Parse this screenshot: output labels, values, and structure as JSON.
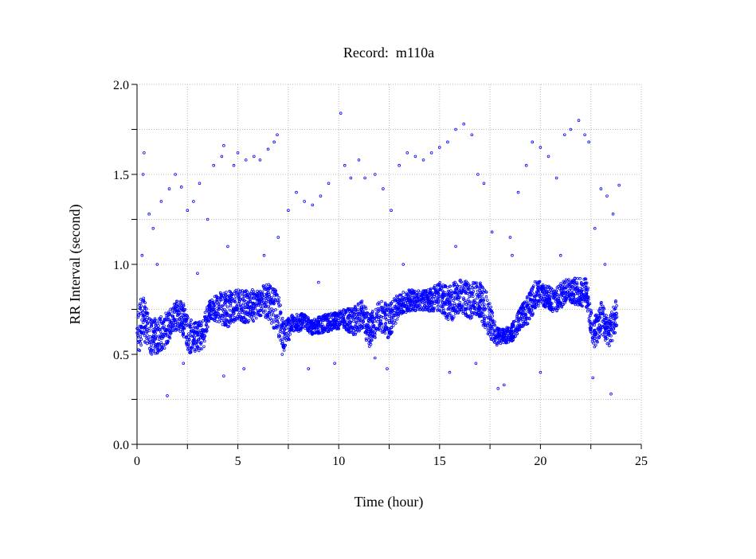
{
  "chart_data": {
    "type": "scatter",
    "title": "Record:  m110a",
    "xlabel": "Time (hour)",
    "ylabel": "RR Interval (second)",
    "xlim": [
      0,
      25
    ],
    "ylim": [
      0,
      2.0
    ],
    "xticks": [
      "0",
      "5",
      "10",
      "15",
      "20",
      "25"
    ],
    "xtick_values": [
      0,
      5,
      10,
      15,
      20,
      25
    ],
    "yticks": [
      "0.0",
      "0.5",
      "1.0",
      "1.5",
      "2.0"
    ],
    "ytick_values": [
      0,
      0.5,
      1.0,
      1.5,
      2.0
    ],
    "grid": true,
    "marker_color": "#0000ff",
    "band": [
      [
        0.0,
        0.6,
        0.15
      ],
      [
        0.3,
        0.72,
        0.12
      ],
      [
        0.6,
        0.6,
        0.1
      ],
      [
        1.0,
        0.6,
        0.1
      ],
      [
        1.3,
        0.62,
        0.1
      ],
      [
        1.7,
        0.68,
        0.08
      ],
      [
        2.0,
        0.72,
        0.08
      ],
      [
        2.3,
        0.7,
        0.1
      ],
      [
        2.6,
        0.6,
        0.1
      ],
      [
        3.0,
        0.6,
        0.08
      ],
      [
        3.3,
        0.62,
        0.1
      ],
      [
        3.6,
        0.75,
        0.05
      ],
      [
        4.0,
        0.76,
        0.08
      ],
      [
        4.5,
        0.75,
        0.1
      ],
      [
        5.0,
        0.78,
        0.08
      ],
      [
        5.5,
        0.76,
        0.1
      ],
      [
        6.0,
        0.78,
        0.08
      ],
      [
        6.5,
        0.8,
        0.1
      ],
      [
        7.0,
        0.72,
        0.12
      ],
      [
        7.3,
        0.6,
        0.08
      ],
      [
        7.7,
        0.67,
        0.05
      ],
      [
        8.2,
        0.68,
        0.05
      ],
      [
        8.7,
        0.65,
        0.04
      ],
      [
        9.2,
        0.67,
        0.05
      ],
      [
        9.7,
        0.68,
        0.05
      ],
      [
        10.2,
        0.7,
        0.05
      ],
      [
        10.7,
        0.68,
        0.08
      ],
      [
        11.2,
        0.72,
        0.08
      ],
      [
        11.5,
        0.62,
        0.1
      ],
      [
        12.0,
        0.72,
        0.08
      ],
      [
        12.5,
        0.68,
        0.1
      ],
      [
        13.0,
        0.78,
        0.06
      ],
      [
        13.5,
        0.8,
        0.06
      ],
      [
        14.0,
        0.8,
        0.06
      ],
      [
        14.5,
        0.8,
        0.06
      ],
      [
        15.0,
        0.82,
        0.08
      ],
      [
        15.5,
        0.78,
        0.1
      ],
      [
        16.0,
        0.82,
        0.1
      ],
      [
        16.5,
        0.8,
        0.1
      ],
      [
        17.0,
        0.8,
        0.1
      ],
      [
        17.4,
        0.72,
        0.12
      ],
      [
        17.8,
        0.6,
        0.05
      ],
      [
        18.2,
        0.6,
        0.04
      ],
      [
        18.6,
        0.62,
        0.05
      ],
      [
        19.0,
        0.7,
        0.06
      ],
      [
        19.4,
        0.75,
        0.08
      ],
      [
        19.8,
        0.84,
        0.08
      ],
      [
        20.3,
        0.82,
        0.06
      ],
      [
        20.8,
        0.8,
        0.08
      ],
      [
        21.3,
        0.86,
        0.06
      ],
      [
        21.8,
        0.85,
        0.08
      ],
      [
        22.3,
        0.84,
        0.08
      ],
      [
        22.6,
        0.6,
        0.08
      ],
      [
        23.0,
        0.7,
        0.1
      ],
      [
        23.4,
        0.62,
        0.08
      ],
      [
        23.8,
        0.72,
        0.1
      ]
    ],
    "outliers": [
      [
        0.25,
        1.05
      ],
      [
        0.3,
        1.5
      ],
      [
        0.35,
        1.62
      ],
      [
        0.6,
        1.28
      ],
      [
        0.8,
        1.2
      ],
      [
        1.0,
        1.0
      ],
      [
        1.2,
        1.35
      ],
      [
        1.5,
        0.27
      ],
      [
        1.6,
        1.42
      ],
      [
        1.9,
        1.5
      ],
      [
        2.2,
        1.43
      ],
      [
        2.5,
        1.3
      ],
      [
        2.8,
        1.35
      ],
      [
        3.1,
        1.45
      ],
      [
        3.5,
        1.25
      ],
      [
        3.8,
        1.55
      ],
      [
        4.2,
        1.6
      ],
      [
        4.3,
        1.66
      ],
      [
        4.5,
        1.1
      ],
      [
        4.8,
        1.55
      ],
      [
        5.0,
        1.62
      ],
      [
        5.4,
        1.58
      ],
      [
        5.8,
        1.6
      ],
      [
        6.1,
        1.58
      ],
      [
        6.5,
        1.64
      ],
      [
        6.8,
        1.68
      ],
      [
        6.95,
        1.72
      ],
      [
        7.0,
        1.15
      ],
      [
        7.2,
        0.5
      ],
      [
        7.5,
        1.3
      ],
      [
        7.9,
        1.4
      ],
      [
        8.3,
        1.35
      ],
      [
        8.7,
        1.33
      ],
      [
        9.1,
        1.38
      ],
      [
        9.5,
        1.45
      ],
      [
        10.1,
        1.84
      ],
      [
        10.3,
        1.55
      ],
      [
        10.6,
        1.48
      ],
      [
        11.0,
        1.58
      ],
      [
        11.3,
        1.48
      ],
      [
        11.8,
        1.5
      ],
      [
        12.2,
        1.42
      ],
      [
        12.6,
        1.3
      ],
      [
        13.0,
        1.55
      ],
      [
        13.4,
        1.62
      ],
      [
        13.8,
        1.6
      ],
      [
        14.2,
        1.58
      ],
      [
        14.6,
        1.62
      ],
      [
        15.0,
        1.65
      ],
      [
        15.4,
        1.68
      ],
      [
        15.8,
        1.75
      ],
      [
        16.2,
        1.78
      ],
      [
        16.6,
        1.72
      ],
      [
        16.9,
        1.5
      ],
      [
        17.2,
        1.45
      ],
      [
        17.6,
        1.18
      ],
      [
        17.9,
        0.31
      ],
      [
        18.2,
        0.33
      ],
      [
        18.5,
        1.15
      ],
      [
        18.9,
        1.4
      ],
      [
        19.3,
        1.55
      ],
      [
        19.6,
        1.68
      ],
      [
        20.0,
        1.65
      ],
      [
        20.4,
        1.6
      ],
      [
        20.8,
        1.48
      ],
      [
        21.2,
        1.72
      ],
      [
        21.5,
        1.75
      ],
      [
        21.9,
        1.8
      ],
      [
        22.2,
        1.72
      ],
      [
        22.4,
        1.68
      ],
      [
        22.7,
        1.2
      ],
      [
        23.0,
        1.42
      ],
      [
        23.3,
        1.38
      ],
      [
        23.5,
        0.28
      ],
      [
        23.6,
        1.28
      ],
      [
        23.9,
        1.44
      ],
      [
        5.3,
        0.42
      ],
      [
        9.8,
        0.45
      ],
      [
        12.4,
        0.42
      ],
      [
        15.5,
        0.4
      ],
      [
        20.0,
        0.4
      ],
      [
        2.3,
        0.45
      ],
      [
        4.3,
        0.38
      ],
      [
        8.5,
        0.42
      ],
      [
        11.8,
        0.48
      ],
      [
        16.8,
        0.45
      ],
      [
        22.6,
        0.37
      ],
      [
        3.0,
        0.95
      ],
      [
        6.3,
        1.05
      ],
      [
        9.0,
        0.9
      ],
      [
        13.2,
        1.0
      ],
      [
        15.8,
        1.1
      ],
      [
        18.6,
        1.05
      ],
      [
        21.0,
        1.05
      ],
      [
        23.2,
        1.0
      ]
    ]
  }
}
